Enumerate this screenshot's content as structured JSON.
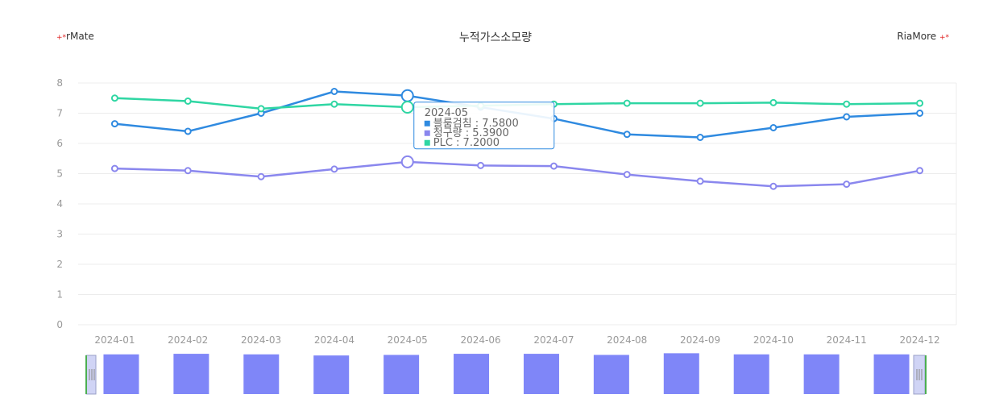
{
  "header": {
    "title": "누적가스소모량",
    "brand_left": "rMate",
    "brand_right": "RiaMore",
    "brand_star": "+*"
  },
  "chart_data": {
    "type": "line",
    "title": "누적가스소모량",
    "xlabel": "",
    "ylabel": "",
    "ylim": [
      0,
      8
    ],
    "yticks": [
      0,
      1,
      2,
      3,
      4,
      5,
      6,
      7,
      8
    ],
    "grid": true,
    "legend": "none",
    "categories": [
      "2024-01",
      "2024-02",
      "2024-03",
      "2024-04",
      "2024-05",
      "2024-06",
      "2024-07",
      "2024-08",
      "2024-09",
      "2024-10",
      "2024-11",
      "2024-12"
    ],
    "series": [
      {
        "name": "블룸검침",
        "color": "#2f8ae0",
        "values": [
          6.65,
          6.4,
          7.0,
          7.72,
          7.58,
          7.2,
          6.82,
          6.3,
          6.2,
          6.52,
          6.88,
          7.0
        ]
      },
      {
        "name": "청구량",
        "color": "#8a87ee",
        "values": [
          5.17,
          5.1,
          4.9,
          5.15,
          5.39,
          5.27,
          5.25,
          4.97,
          4.75,
          4.58,
          4.65,
          5.1
        ]
      },
      {
        "name": "PLC",
        "color": "#2fd6a3",
        "values": [
          7.5,
          7.4,
          7.15,
          7.3,
          7.2,
          7.25,
          7.3,
          7.33,
          7.33,
          7.35,
          7.3,
          7.33
        ]
      }
    ],
    "tooltip": {
      "category": "2024-05",
      "rows": [
        {
          "label": "블룸검침 : 7.5800",
          "color": "#2f8ae0"
        },
        {
          "label": "청구량 : 5.3900",
          "color": "#8a87ee"
        },
        {
          "label": "PLC : 7.2000",
          "color": "#2fd6a3"
        }
      ]
    },
    "navigator": {
      "bar_color": "#7f86f8",
      "values": [
        7.1,
        7.2,
        7.1,
        6.9,
        7.0,
        7.2,
        7.2,
        7.0,
        7.3,
        7.1,
        7.1,
        7.1
      ]
    }
  }
}
